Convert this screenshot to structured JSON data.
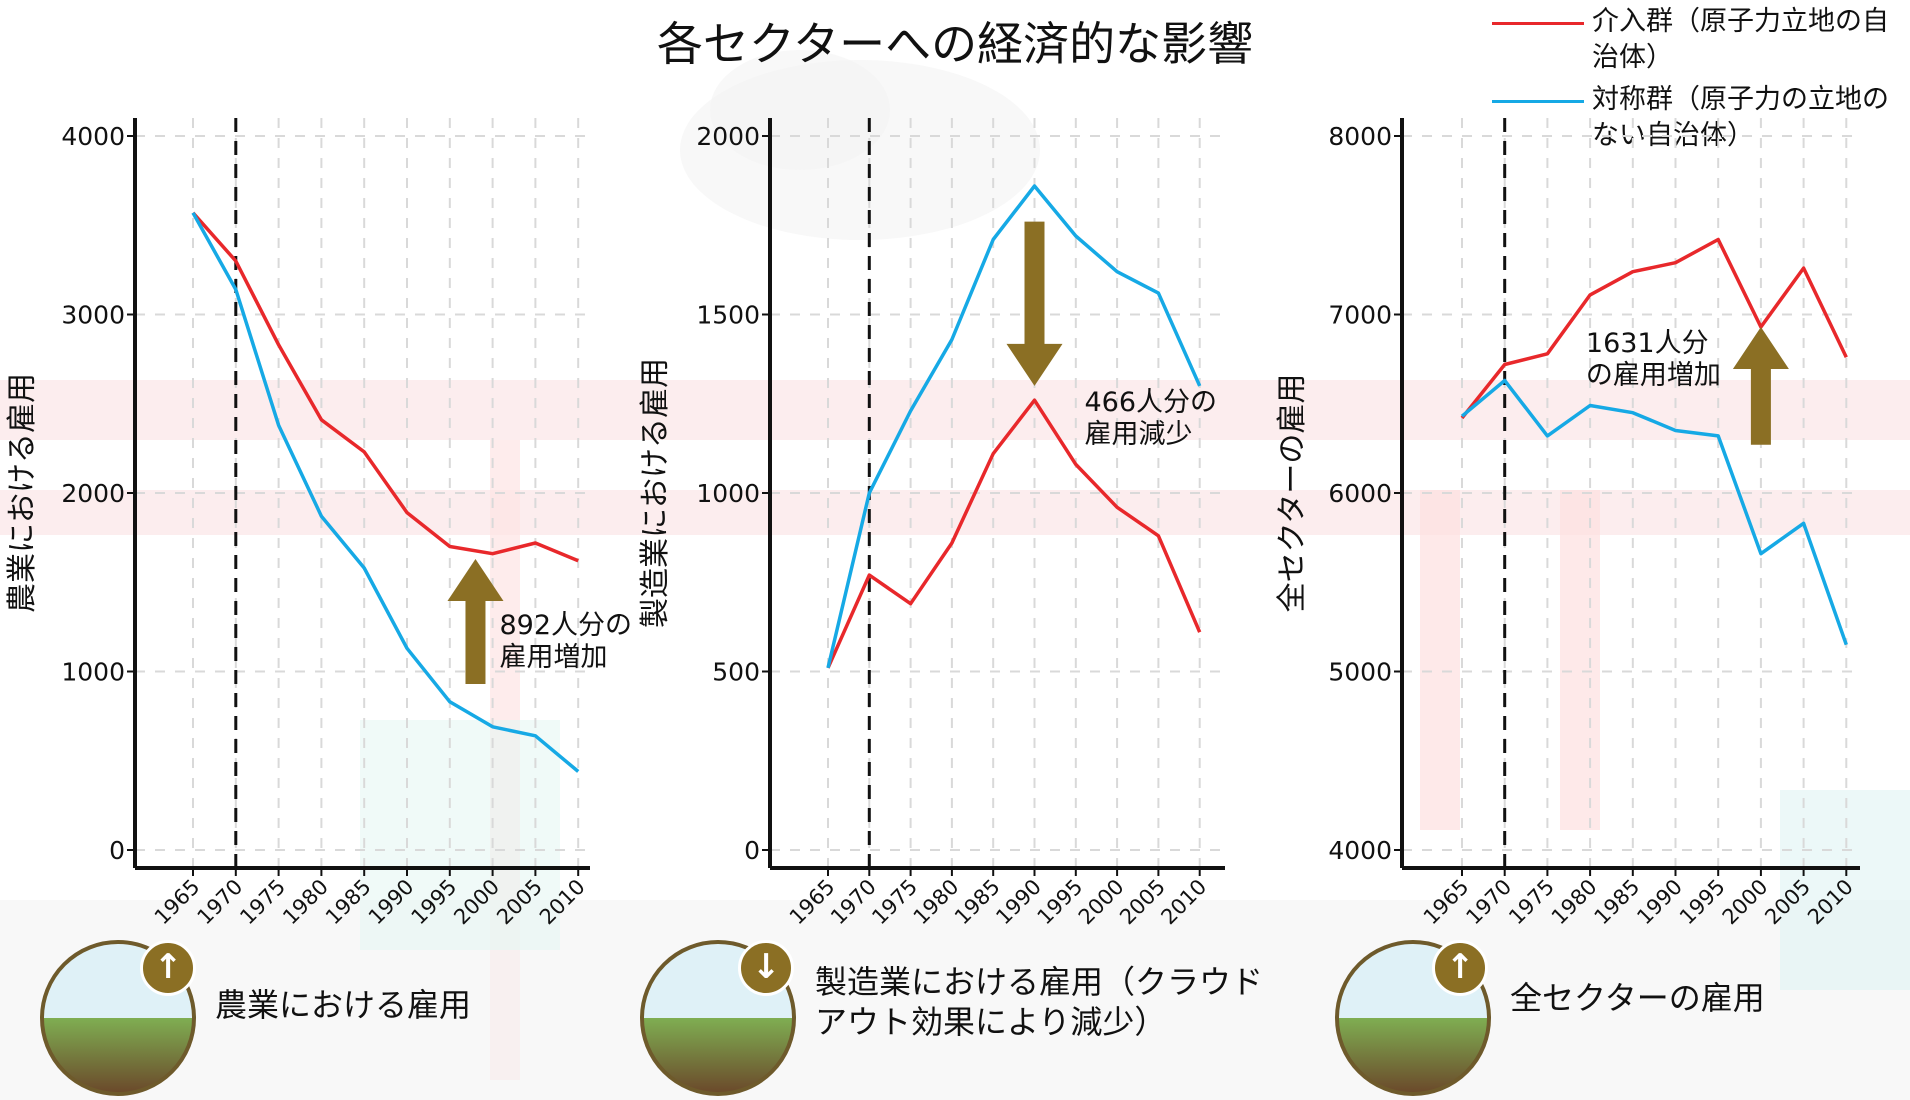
{
  "title": "各セクターへの経済的な影響",
  "legend": [
    {
      "label": "介入群（原子力立地の自治体）",
      "color": "#e8282b"
    },
    {
      "label": "対称群（原子力の立地のない自治体）",
      "color": "#16a9e5"
    }
  ],
  "colors": {
    "treatment": "#e8282b",
    "control": "#16a9e5",
    "arrow": "#8b6f24",
    "axis": "#111111",
    "grid": "#d9d9d9"
  },
  "panels": [
    {
      "label": "農業における雇用",
      "direction": "up",
      "icon": "tractor-farmer-icon"
    },
    {
      "label": "製造業における雇用（クラウドアウト効果により減少）",
      "direction": "down",
      "icon": "factory-worker-icon"
    },
    {
      "label": "全セクターの雇用",
      "direction": "up",
      "icon": "forklift-warehouse-icon"
    }
  ],
  "chart_data": [
    {
      "type": "line",
      "ylabel": "農業における雇用",
      "ylim": [
        0,
        4000
      ],
      "yticks": [
        0,
        1000,
        2000,
        3000,
        4000
      ],
      "x": [
        1965,
        1970,
        1975,
        1980,
        1985,
        1990,
        1995,
        2000,
        2005,
        2010
      ],
      "treatment_year": 1970,
      "series": [
        {
          "name": "介入群（原子力立地の自治体）",
          "values": [
            3570,
            3300,
            2830,
            2410,
            2230,
            1890,
            1700,
            1660,
            1720,
            1620
          ]
        },
        {
          "name": "対称群（原子力の立地のない自治体）",
          "values": [
            3570,
            3140,
            2380,
            1870,
            1580,
            1130,
            830,
            690,
            640,
            440
          ]
        }
      ],
      "annotation": {
        "line1": "892人分の",
        "line2": "雇用増加",
        "direction": "up",
        "x": 1998,
        "y_from": 930,
        "y_to": 1630
      }
    },
    {
      "type": "line",
      "ylabel": "製造業における雇用",
      "ylim": [
        0,
        2000
      ],
      "yticks": [
        0,
        500,
        1000,
        1500,
        2000
      ],
      "x": [
        1965,
        1970,
        1975,
        1980,
        1985,
        1990,
        1995,
        2000,
        2005,
        2010
      ],
      "treatment_year": 1970,
      "series": [
        {
          "name": "介入群（原子力立地の自治体）",
          "values": [
            510,
            770,
            690,
            860,
            1110,
            1260,
            1080,
            960,
            880,
            610
          ]
        },
        {
          "name": "対称群（原子力の立地のない自治体）",
          "values": [
            510,
            1000,
            1230,
            1430,
            1710,
            1860,
            1720,
            1620,
            1560,
            1300
          ]
        }
      ],
      "annotation": {
        "line1": "466人分の",
        "line2": "雇用減少",
        "direction": "down",
        "x": 1990,
        "y_from": 1760,
        "y_to": 1300
      }
    },
    {
      "type": "line",
      "ylabel": "全セクターの雇用",
      "ylim": [
        4000,
        8000
      ],
      "yticks": [
        4000,
        5000,
        6000,
        7000,
        8000
      ],
      "x": [
        1965,
        1970,
        1975,
        1980,
        1985,
        1990,
        1995,
        2000,
        2005,
        2010
      ],
      "treatment_year": 1970,
      "series": [
        {
          "name": "介入群（原子力立地の自治体）",
          "values": [
            6420,
            6720,
            6780,
            7110,
            7240,
            7290,
            7420,
            6930,
            7260,
            6760
          ]
        },
        {
          "name": "対称群（原子力の立地のない自治体）",
          "values": [
            6430,
            6630,
            6320,
            6490,
            6450,
            6350,
            6320,
            5660,
            5830,
            5150
          ]
        }
      ],
      "annotation": {
        "line1": "1631人分",
        "line2": "の雇用増加",
        "direction": "up",
        "x": 2000,
        "y_from": 6270,
        "y_to": 6930
      }
    }
  ]
}
